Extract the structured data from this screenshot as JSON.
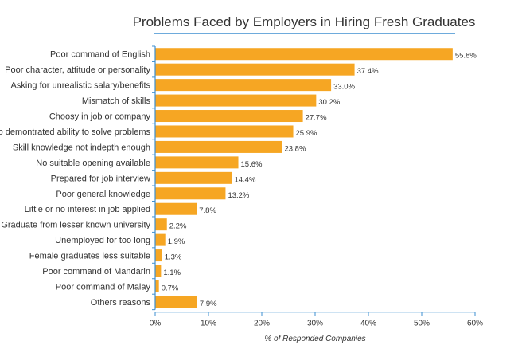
{
  "chart_data": {
    "type": "bar",
    "orientation": "horizontal",
    "title": "Problems Faced by Employers in Hiring Fresh Graduates",
    "xlabel": "% of Responded Companies",
    "ylabel": "",
    "xlim": [
      0,
      60
    ],
    "x_ticks": [
      "0%",
      "10%",
      "20%",
      "30%",
      "40%",
      "50%",
      "60%"
    ],
    "categories": [
      "Poor command of English",
      "Poor character, attitude or personality",
      "Asking for unrealistic salary/benefits",
      "Mismatch of skills",
      "Choosy in job or company",
      "No demontrated ability to solve problems",
      "Skill knowledge not indepth enough",
      "No suitable opening available",
      "Prepared for job interview",
      "Poor general knowledge",
      "Little or no interest in job applied",
      "Graduate from lesser known university",
      "Unemployed for too long",
      "Female graduates less suitable",
      "Poor command of Mandarin",
      "Poor command of Malay",
      "Others reasons"
    ],
    "values": [
      55.8,
      37.4,
      33.0,
      30.2,
      27.7,
      25.9,
      23.8,
      15.6,
      14.4,
      13.2,
      7.8,
      2.2,
      1.9,
      1.3,
      1.1,
      0.7,
      7.9
    ],
    "value_labels": [
      "55.8%",
      "37.4%",
      "33.0%",
      "30.2%",
      "27.7%",
      "25.9%",
      "23.8%",
      "15.6%",
      "14.4%",
      "13.2%",
      "7.8%",
      "2.2%",
      "1.9%",
      "1.3%",
      "1.1%",
      "0.7%",
      "7.9%"
    ],
    "grid": false,
    "legend": "none",
    "colors": {
      "bar": "#F6A623",
      "axis": "#3E8FD0",
      "text": "#333333",
      "title_underline": "#3E8FD0"
    }
  }
}
